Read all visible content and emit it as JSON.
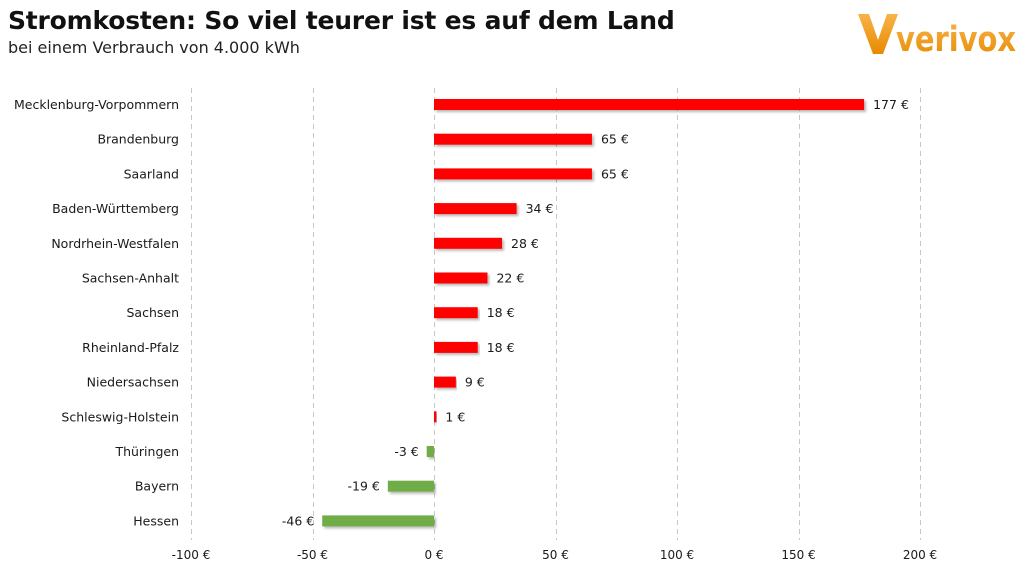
{
  "header": {
    "title": "Stromkosten: So viel teurer ist es auf dem Land",
    "subtitle": "bei einem Verbrauch von 4.000 kWh"
  },
  "logo": {
    "text": "verivox",
    "color": "#f29200"
  },
  "colors": {
    "positive": "#ff0000",
    "negative": "#70ad47",
    "grid": "#c8c8c8",
    "text": "#1a1a1a"
  },
  "chart_data": {
    "type": "bar",
    "orientation": "horizontal",
    "title": "Stromkosten: So viel teurer ist es auf dem Land",
    "subtitle": "bei einem Verbrauch von 4.000 kWh",
    "categories": [
      "Mecklenburg-Vorpommern",
      "Brandenburg",
      "Saarland",
      "Baden-Württemberg",
      "Nordrhein-Westfalen",
      "Sachsen-Anhalt",
      "Sachsen",
      "Rheinland-Pfalz",
      "Niedersachsen",
      "Schleswig-Holstein",
      "Thüringen",
      "Bayern",
      "Hessen"
    ],
    "values": [
      177,
      65,
      65,
      34,
      28,
      22,
      18,
      18,
      9,
      1,
      -3,
      -19,
      -46
    ],
    "value_labels": [
      "177 €",
      "65 €",
      "65 €",
      "34 €",
      "28 €",
      "22 €",
      "18 €",
      "18 €",
      "9 €",
      "1 €",
      "-3 €",
      "-19 €",
      "-46 €"
    ],
    "xlim": [
      -100,
      200
    ],
    "xticks": [
      -100,
      -50,
      0,
      50,
      100,
      150,
      200
    ],
    "xtick_labels": [
      "-100 €",
      "-50 €",
      "0 €",
      "50 €",
      "100 €",
      "150 €",
      "200 €"
    ],
    "grid": "vertical dashed",
    "legend": "none"
  }
}
